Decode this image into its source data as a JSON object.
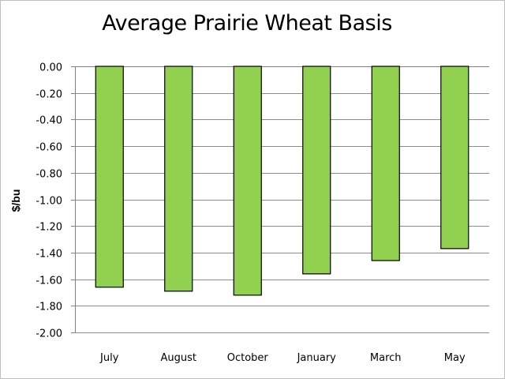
{
  "chart_data": {
    "type": "bar",
    "title": "Average Prairie Wheat Basis",
    "xlabel": "",
    "ylabel": "$/bu",
    "categories": [
      "July",
      "August",
      "October",
      "January",
      "March",
      "May"
    ],
    "values": [
      -1.66,
      -1.69,
      -1.72,
      -1.56,
      -1.46,
      -1.37
    ],
    "ylim": [
      -2.0,
      0.0
    ],
    "yticks": [
      "0.00",
      "-0.20",
      "-0.40",
      "-0.60",
      "-0.80",
      "-1.00",
      "-1.20",
      "-1.40",
      "-1.60",
      "-1.80",
      "-2.00"
    ],
    "grid": true,
    "legend": "none",
    "bar_color": "#92d050",
    "bar_edge_color": "#000000"
  }
}
